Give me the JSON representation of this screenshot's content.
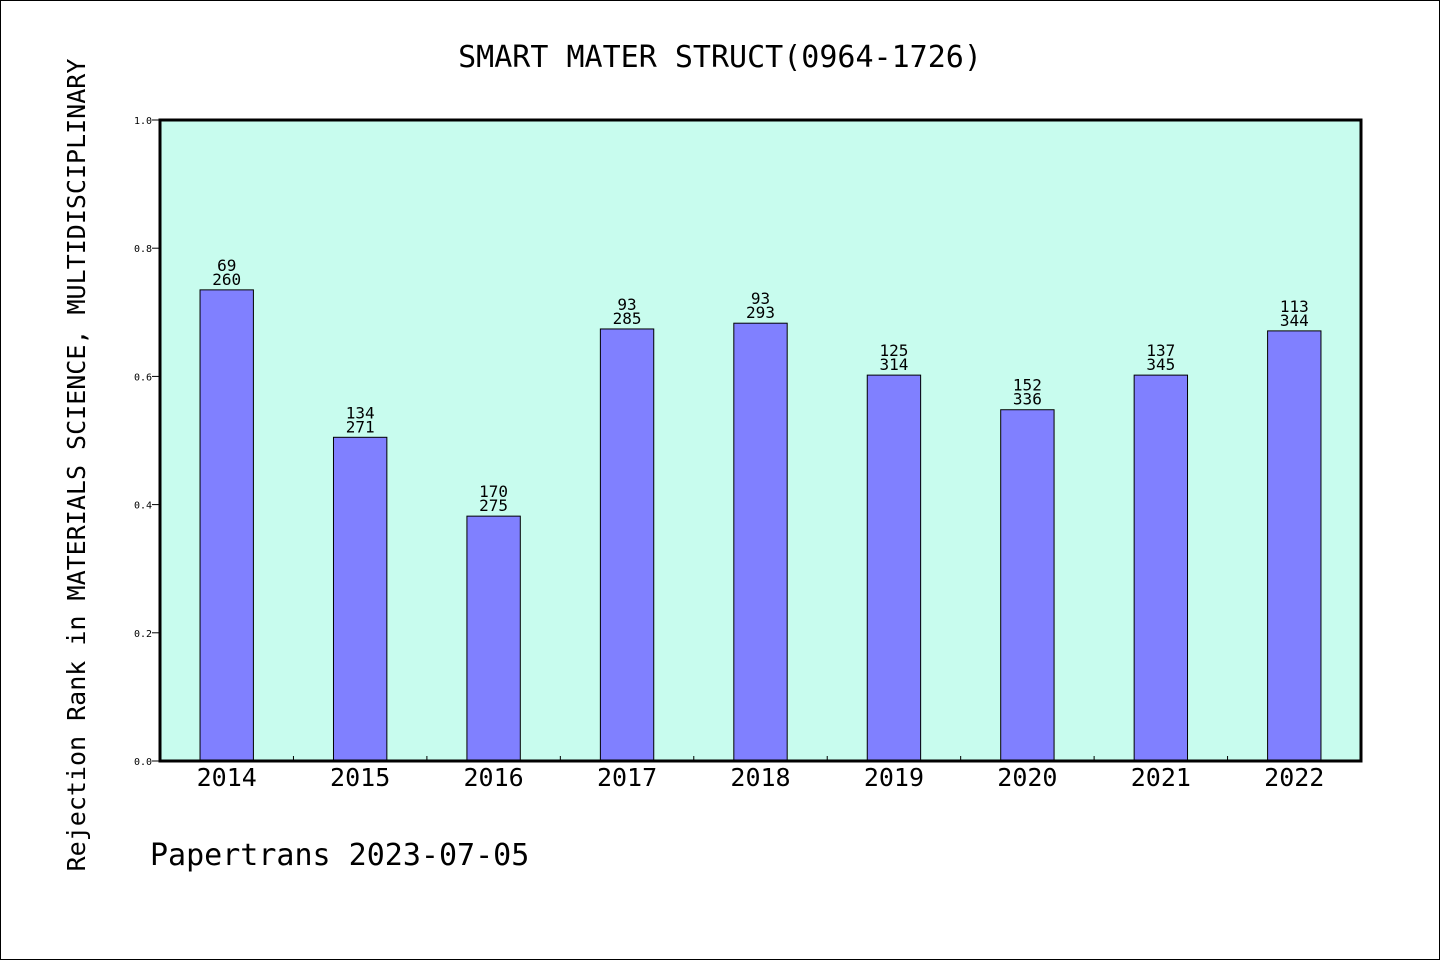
{
  "chart_data": {
    "type": "bar",
    "title": "SMART MATER STRUCT(0964-1726)",
    "xlabel": "",
    "ylabel": "Rejection Rank in MATERIALS SCIENCE, MULTIDISCIPLINARY",
    "ylim": [
      0,
      1.0
    ],
    "yticks": [
      "0.0",
      "0.2",
      "0.4",
      "0.6",
      "0.8",
      "1.0"
    ],
    "categories": [
      "2014",
      "2015",
      "2016",
      "2017",
      "2018",
      "2019",
      "2020",
      "2021",
      "2022"
    ],
    "values": [
      0.735,
      0.505,
      0.382,
      0.674,
      0.683,
      0.602,
      0.548,
      0.602,
      0.671
    ],
    "rank": [
      "69",
      "134",
      "170",
      "93",
      "93",
      "125",
      "152",
      "137",
      "113"
    ],
    "total": [
      "260",
      "271",
      "275",
      "285",
      "293",
      "314",
      "336",
      "345",
      "344"
    ],
    "colors": {
      "plot_bg": "#c8fcee",
      "bar": "#8080ff",
      "axis": "#000000"
    }
  },
  "footer": {
    "text": "Papertrans 2023-07-05"
  }
}
